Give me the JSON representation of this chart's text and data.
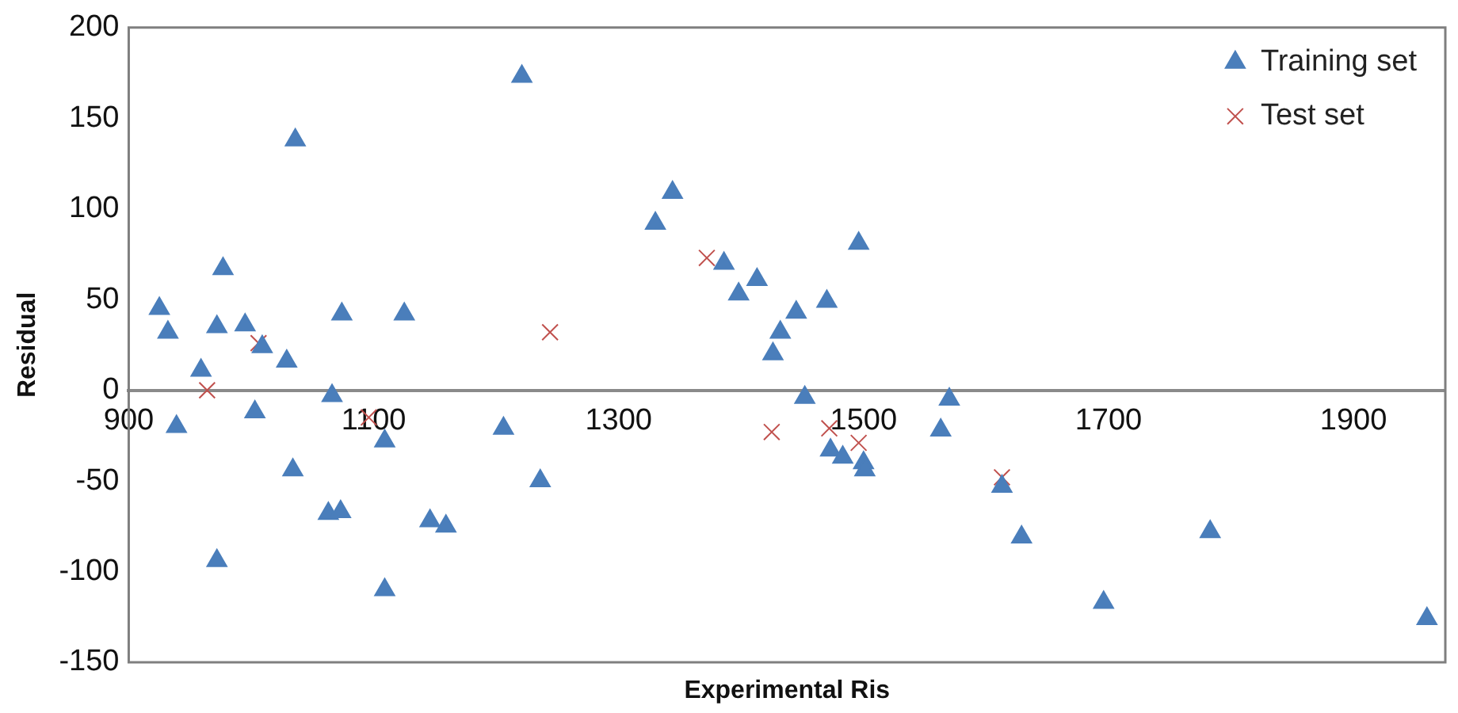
{
  "chart_data": {
    "type": "scatter",
    "xlabel": "Experimental Ris",
    "ylabel": "Residual",
    "xlim": [
      900,
      1975
    ],
    "xticks": [
      900,
      1100,
      1300,
      1500,
      1700,
      1900
    ],
    "ylim": [
      -150,
      200
    ],
    "yticks": [
      -150,
      -100,
      -50,
      0,
      50,
      100,
      150,
      200
    ],
    "grid": false,
    "legend": "top right",
    "series": [
      {
        "name": "Training set",
        "color": "#4a7ebb",
        "marker": "triangle",
        "x": [
          925,
          932,
          939,
          959,
          977,
          972,
          972,
          995,
          1003,
          1009,
          1029,
          1036,
          1034,
          1066,
          1063,
          1073,
          1074,
          1109,
          1109,
          1125,
          1146,
          1159,
          1206,
          1221,
          1236,
          1330,
          1344,
          1386,
          1413,
          1398,
          1445,
          1470,
          1432,
          1426,
          1496,
          1452,
          1473,
          1483,
          1500,
          1501,
          1570,
          1563,
          1613,
          1629,
          1696,
          1783,
          1960
        ],
        "values": [
          45,
          32,
          -20,
          11,
          67,
          35,
          -94,
          36,
          -12,
          24,
          16,
          138,
          -44,
          -3,
          -68,
          -67,
          42,
          -28,
          -110,
          42,
          -72,
          -75,
          -21,
          173,
          -50,
          92,
          109,
          70,
          61,
          53,
          43,
          49,
          32,
          20,
          81,
          -4,
          -33,
          -37,
          -40,
          -44,
          -5,
          -22,
          -53,
          -81,
          -117,
          -78,
          -126
        ]
      },
      {
        "name": "Test set",
        "color": "#c0504d",
        "marker": "cross",
        "x": [
          964,
          1006,
          1096,
          1244,
          1372,
          1425,
          1472,
          1496,
          1613
        ],
        "values": [
          0,
          26,
          -15,
          32,
          73,
          -23,
          -21,
          -29,
          -48
        ]
      }
    ]
  }
}
